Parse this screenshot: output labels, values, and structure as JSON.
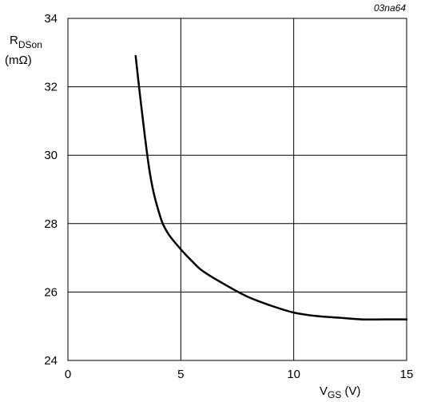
{
  "figure_code": "03na64",
  "chart_data": {
    "type": "line",
    "title": "",
    "xlabel": {
      "main": "V",
      "sub": "GS",
      "unit": " (V)"
    },
    "ylabel": {
      "main": "R",
      "sub": "DSon",
      "unit": "(mΩ)"
    },
    "xlim": [
      0,
      15
    ],
    "ylim": [
      24,
      34
    ],
    "xticks": [
      0,
      5,
      10,
      15
    ],
    "yticks": [
      24,
      26,
      28,
      30,
      32,
      34
    ],
    "grid": true,
    "series": [
      {
        "x": [
          3.0,
          3.2,
          3.4,
          3.6,
          3.8,
          4.0,
          4.2,
          4.5,
          5.0,
          5.5,
          6.0,
          7.0,
          8.0,
          9.0,
          10.0,
          11.0,
          12.0,
          13.0,
          14.0,
          15.0
        ],
        "y": [
          32.9,
          31.7,
          30.6,
          29.6,
          28.9,
          28.4,
          28.0,
          27.65,
          27.25,
          26.9,
          26.6,
          26.2,
          25.85,
          25.6,
          25.4,
          25.3,
          25.25,
          25.2,
          25.2,
          25.2
        ]
      }
    ]
  }
}
